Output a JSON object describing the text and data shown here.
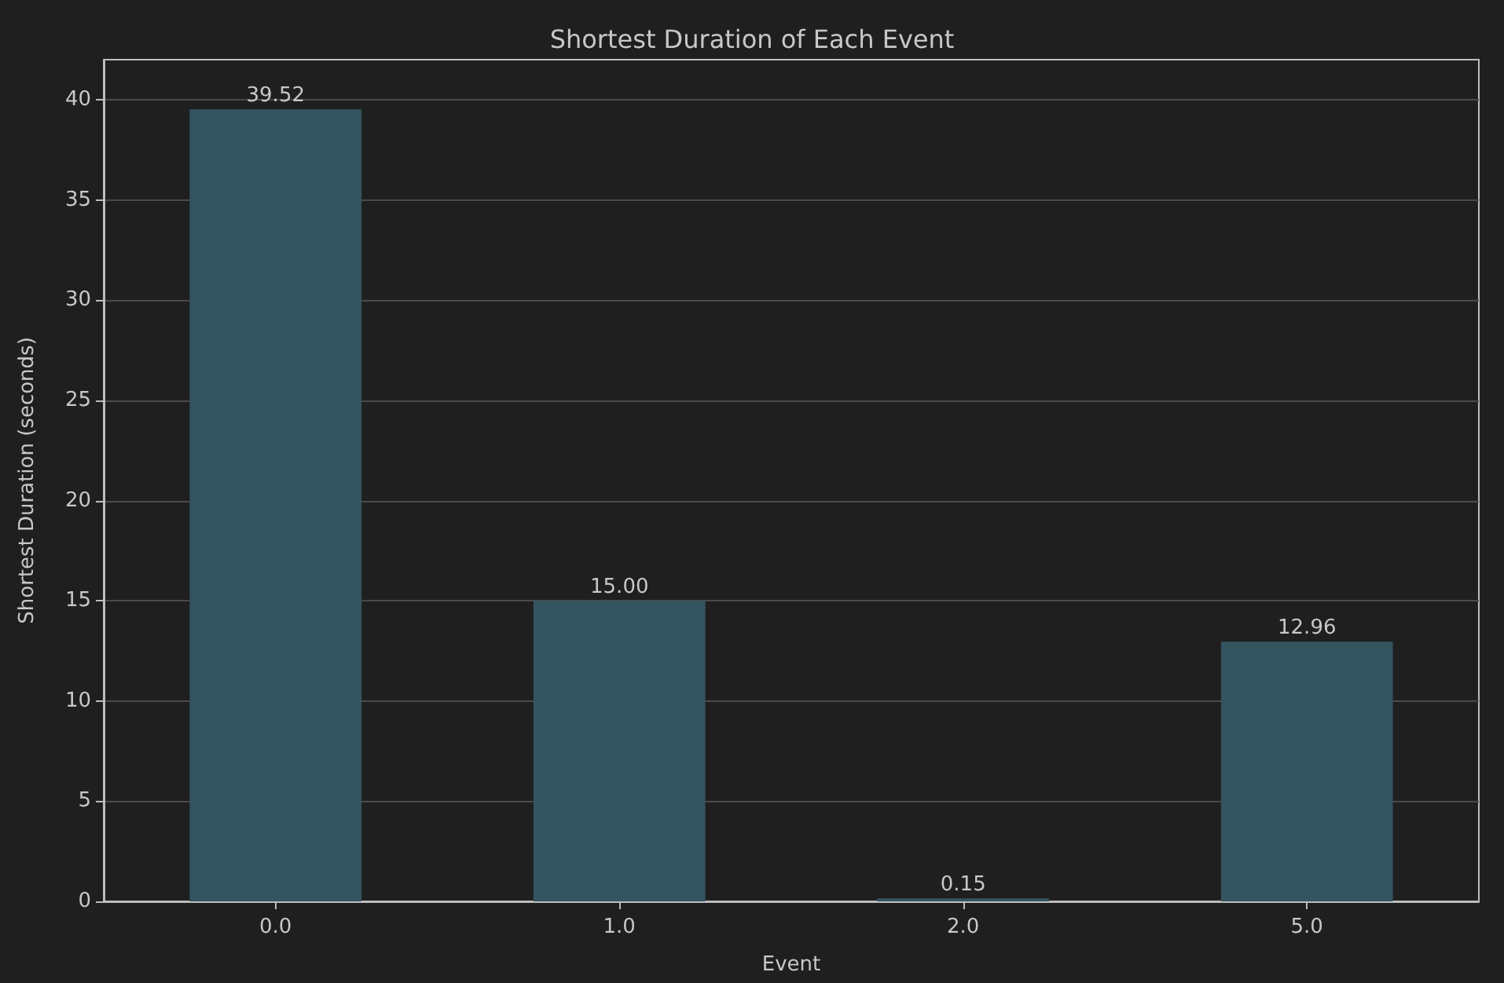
{
  "chart_data": {
    "type": "bar",
    "title": "Shortest Duration of Each Event",
    "xlabel": "Event",
    "ylabel": "Shortest Duration (seconds)",
    "categories": [
      "0.0",
      "1.0",
      "2.0",
      "5.0"
    ],
    "values": [
      39.52,
      15.0,
      0.15,
      12.96
    ],
    "value_labels": [
      "39.52",
      "15.00",
      "0.15",
      "12.96"
    ],
    "color": "#345460",
    "ylim": [
      0,
      42
    ],
    "yticks": [
      0,
      5,
      10,
      15,
      20,
      25,
      30,
      35,
      40
    ],
    "grid": "y"
  }
}
